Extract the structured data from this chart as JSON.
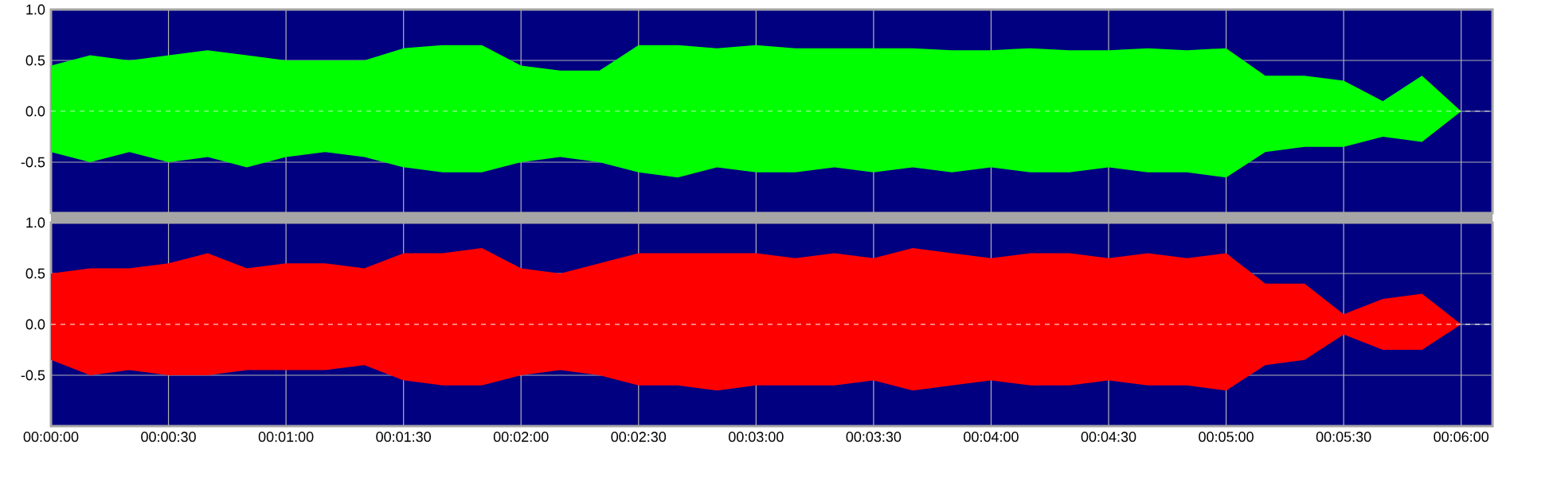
{
  "chart_data": [
    {
      "type": "area",
      "x": [
        0,
        10,
        20,
        30,
        40,
        50,
        60,
        70,
        80,
        90,
        100,
        110,
        120,
        130,
        140,
        150,
        160,
        170,
        180,
        190,
        200,
        210,
        220,
        230,
        240,
        250,
        260,
        270,
        280,
        290,
        300,
        310,
        320,
        330,
        340,
        350,
        360
      ],
      "series": [
        {
          "color": "#00ff00",
          "values": [
            0.45,
            0.55,
            0.5,
            0.55,
            0.6,
            0.55,
            0.5,
            0.5,
            0.5,
            0.62,
            0.65,
            0.65,
            0.45,
            0.4,
            0.4,
            0.65,
            0.65,
            0.62,
            0.65,
            0.62,
            0.62,
            0.62,
            0.62,
            0.6,
            0.6,
            0.62,
            0.6,
            0.6,
            0.62,
            0.6,
            0.62,
            0.35,
            0.35,
            0.3,
            0.1,
            0.35,
            0
          ]
        },
        {
          "color": "#00ff00",
          "values": [
            -0.4,
            -0.5,
            -0.4,
            -0.5,
            -0.45,
            -0.55,
            -0.45,
            -0.4,
            -0.45,
            -0.55,
            -0.6,
            -0.6,
            -0.5,
            -0.45,
            -0.5,
            -0.6,
            -0.65,
            -0.55,
            -0.6,
            -0.6,
            -0.55,
            -0.6,
            -0.55,
            -0.6,
            -0.55,
            -0.6,
            -0.6,
            -0.55,
            -0.6,
            -0.6,
            -0.65,
            -0.4,
            -0.35,
            -0.35,
            -0.25,
            -0.3,
            0
          ]
        }
      ],
      "xlim": [
        0,
        368
      ],
      "xticks": [
        {
          "value": 0,
          "label": null
        },
        {
          "value": 30,
          "label": null
        },
        {
          "value": 60,
          "label": null
        },
        {
          "value": 90,
          "label": null
        },
        {
          "value": 120,
          "label": null
        },
        {
          "value": 150,
          "label": null
        },
        {
          "value": 180,
          "label": null
        },
        {
          "value": 210,
          "label": null
        },
        {
          "value": 240,
          "label": null
        },
        {
          "value": 270,
          "label": null
        },
        {
          "value": 300,
          "label": null
        },
        {
          "value": 330,
          "label": null
        },
        {
          "value": 360,
          "label": null
        }
      ],
      "ylim": [
        -1,
        1
      ],
      "yticks": [
        {
          "value": -0.5,
          "label": "-0.5"
        },
        {
          "value": 0,
          "label": "0.0"
        },
        {
          "value": 0.5,
          "label": "0.5"
        },
        {
          "value": 1,
          "label": "1.0"
        }
      ],
      "grid": true,
      "tick_labels": "y",
      "ref_lines": [
        {
          "axis": "y",
          "value": 0,
          "color": "#ffffff",
          "line_style": "dashed"
        }
      ]
    },
    {
      "type": "area",
      "x": [
        0,
        10,
        20,
        30,
        40,
        50,
        60,
        70,
        80,
        90,
        100,
        110,
        120,
        130,
        140,
        150,
        160,
        170,
        180,
        190,
        200,
        210,
        220,
        230,
        240,
        250,
        260,
        270,
        280,
        290,
        300,
        310,
        320,
        330,
        340,
        350,
        360
      ],
      "series": [
        {
          "color": "#ff0000",
          "values": [
            0.5,
            0.55,
            0.55,
            0.6,
            0.7,
            0.55,
            0.6,
            0.6,
            0.55,
            0.7,
            0.7,
            0.75,
            0.55,
            0.5,
            0.6,
            0.7,
            0.7,
            0.7,
            0.7,
            0.65,
            0.7,
            0.65,
            0.75,
            0.7,
            0.65,
            0.7,
            0.7,
            0.65,
            0.7,
            0.65,
            0.7,
            0.4,
            0.4,
            0.1,
            0.25,
            0.3,
            0
          ]
        },
        {
          "color": "#ff0000",
          "values": [
            -0.35,
            -0.5,
            -0.45,
            -0.5,
            -0.5,
            -0.45,
            -0.45,
            -0.45,
            -0.4,
            -0.55,
            -0.6,
            -0.6,
            -0.5,
            -0.45,
            -0.5,
            -0.6,
            -0.6,
            -0.65,
            -0.6,
            -0.6,
            -0.6,
            -0.55,
            -0.65,
            -0.6,
            -0.55,
            -0.6,
            -0.6,
            -0.55,
            -0.6,
            -0.6,
            -0.65,
            -0.4,
            -0.35,
            -0.1,
            -0.25,
            -0.25,
            0
          ]
        }
      ],
      "xlim": [
        0,
        368
      ],
      "xticks": [
        {
          "value": 0,
          "label": "00:00:00"
        },
        {
          "value": 30,
          "label": "00:00:30"
        },
        {
          "value": 60,
          "label": "00:01:00"
        },
        {
          "value": 90,
          "label": "00:01:30"
        },
        {
          "value": 120,
          "label": "00:02:00"
        },
        {
          "value": 150,
          "label": "00:02:30"
        },
        {
          "value": 180,
          "label": "00:03:00"
        },
        {
          "value": 210,
          "label": "00:03:30"
        },
        {
          "value": 240,
          "label": "00:04:00"
        },
        {
          "value": 270,
          "label": "00:04:30"
        },
        {
          "value": 300,
          "label": "00:05:00"
        },
        {
          "value": 330,
          "label": "00:05:30"
        },
        {
          "value": 360,
          "label": "00:06:00"
        }
      ],
      "ylim": [
        -1,
        1
      ],
      "yticks": [
        {
          "value": -0.5,
          "label": "-0.5"
        },
        {
          "value": 0,
          "label": "0.0"
        },
        {
          "value": 0.5,
          "label": "0.5"
        },
        {
          "value": 1,
          "label": "1.0"
        }
      ],
      "grid": true,
      "ref_lines": [
        {
          "axis": "y",
          "value": 0,
          "color": "#ffffff",
          "line_style": "dashed"
        }
      ]
    }
  ]
}
